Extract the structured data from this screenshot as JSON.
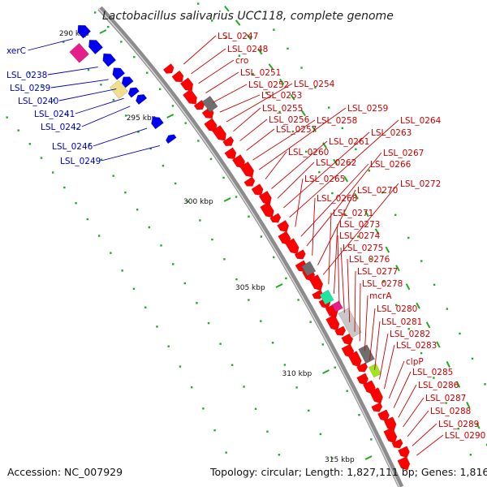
{
  "title": "Lactobacillus salivarius UCC118, complete genome",
  "footer": {
    "accession": "Accession: NC_007929",
    "summary": "Topology: circular; Length: 1,827,111 bp; Genes: 1,816"
  },
  "colors": {
    "backbone": "#8c8c8c",
    "forward_gene": "#ff0000",
    "reverse_gene": "#0000ee",
    "forward_label": "#cc0000",
    "reverse_label": "#0000bb",
    "tick": "#22aa22",
    "magenta_feature": "#e61e8c",
    "yellow_feature": "#f0e08c",
    "gray_feature": "#6e6e6e",
    "teal_feature": "#1ee6a0",
    "lime_feature": "#a0e61e",
    "light_gray_feature": "#c8c8c8"
  },
  "scale_labels": [
    "290 kbp",
    "295 kbp",
    "300 kbp",
    "305 kbp",
    "310 kbp",
    "315 kbp"
  ],
  "reverse_labels": [
    "xerC",
    "LSL_0238",
    "LSL_0239",
    "LSL_0240",
    "LSL_0241",
    "LSL_0242",
    "LSL_0246",
    "LSL_0249"
  ],
  "forward_labels": [
    "LSL_0247",
    "LSL_0248",
    "cro",
    "LSL_0251",
    "LSL_0252",
    "LSL_0253",
    "LSL_0254",
    "LSL_0255",
    "LSL_0256",
    "LSL_0257",
    "LSL_0258",
    "LSL_0259",
    "LSL_0260",
    "LSL_0261",
    "LSL_0262",
    "LSL_0263",
    "LSL_0264",
    "LSL_0265",
    "LSL_0266",
    "LSL_0267",
    "LSL_0268",
    "LSL_0270",
    "LSL_0272",
    "LSL_0271",
    "LSL_0273",
    "LSL_0274",
    "LSL_0275",
    "LSL_0276",
    "LSL_0277",
    "LSL_0278",
    "mcrA",
    "LSL_0280",
    "LSL_0281",
    "LSL_0282",
    "LSL_0283",
    "clpP",
    "LSL_0285",
    "LSL_0286",
    "LSL_0287",
    "LSL_0288",
    "LSL_0289",
    "LSL_0290"
  ]
}
